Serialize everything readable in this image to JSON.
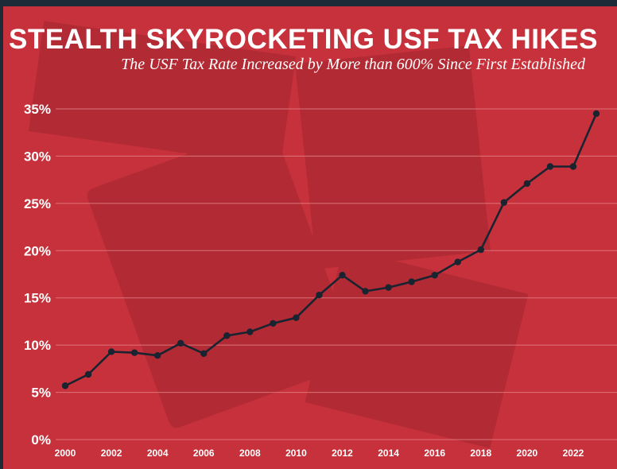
{
  "colors": {
    "background": "#c7313b",
    "line": "#1a2330",
    "text": "#ffffff",
    "grid": "#e88a90"
  },
  "chart_data": {
    "type": "line",
    "title": "STEALTH SKYROCKETING USF TAX HIKES",
    "subtitle": "The USF Tax Rate Increased by More than 600% Since First Established",
    "xlabel": "",
    "ylabel": "",
    "ylim": [
      0,
      35
    ],
    "xlim": [
      2000,
      2023
    ],
    "yticks": [
      "0%",
      "5%",
      "10%",
      "15%",
      "20%",
      "25%",
      "30%",
      "35%"
    ],
    "xticks": [
      "2000",
      "2002",
      "2004",
      "2006",
      "2008",
      "2010",
      "2012",
      "2014",
      "2016",
      "2018",
      "2020",
      "2022"
    ],
    "grid": true,
    "x": [
      2000,
      2001,
      2002,
      2003,
      2004,
      2005,
      2006,
      2007,
      2008,
      2009,
      2010,
      2011,
      2012,
      2013,
      2014,
      2015,
      2016,
      2017,
      2018,
      2019,
      2020,
      2021,
      2022,
      2023
    ],
    "y": [
      5.7,
      6.9,
      9.3,
      9.2,
      8.9,
      10.2,
      9.1,
      11.0,
      11.4,
      12.3,
      12.9,
      15.3,
      17.4,
      15.7,
      16.1,
      16.7,
      17.4,
      18.8,
      20.1,
      25.1,
      27.1,
      28.9,
      28.9,
      34.5
    ]
  }
}
